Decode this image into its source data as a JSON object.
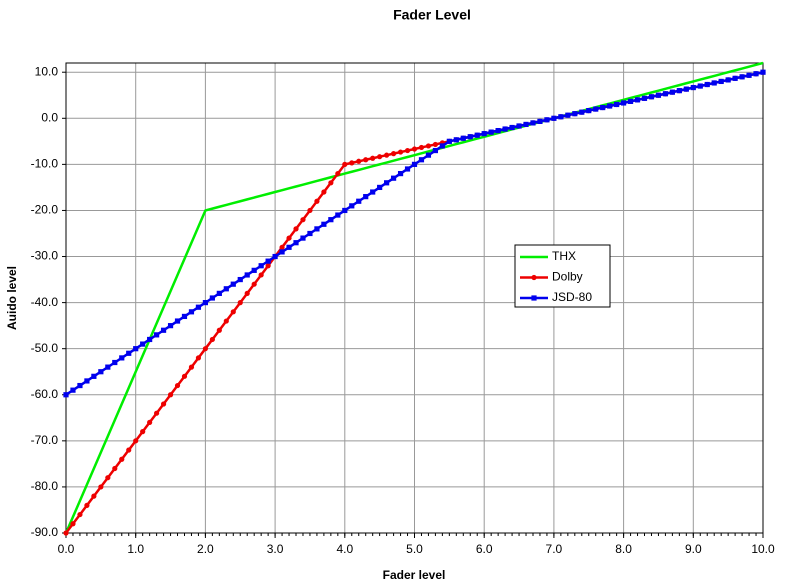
{
  "chart_data": {
    "type": "line",
    "title": "Fader Level",
    "x_label": "Fader level",
    "y_label": "Auido level",
    "x": [
      0,
      0.1,
      0.2,
      0.3,
      0.4,
      0.5,
      0.6,
      0.7,
      0.8,
      0.9,
      1,
      1.1,
      1.2,
      1.3,
      1.4,
      1.5,
      1.6,
      1.7,
      1.8,
      1.9,
      2,
      2.1,
      2.2,
      2.3,
      2.4,
      2.5,
      2.6,
      2.7,
      2.8,
      2.9,
      3,
      3.1,
      3.2,
      3.3,
      3.4,
      3.5,
      3.6,
      3.7,
      3.8,
      3.9,
      4,
      4.1,
      4.2,
      4.3,
      4.4,
      4.5,
      4.6,
      4.7,
      4.8,
      4.9,
      5,
      5.1,
      5.2,
      5.3,
      5.4,
      5.5,
      5.6,
      5.7,
      5.8,
      5.9,
      6,
      6.1,
      6.2,
      6.3,
      6.4,
      6.5,
      6.6,
      6.7,
      6.8,
      6.9,
      7,
      7.1,
      7.2,
      7.3,
      7.4,
      7.5,
      7.6,
      7.7,
      7.8,
      7.9,
      8,
      8.1,
      8.2,
      8.3,
      8.4,
      8.5,
      8.6,
      8.7,
      8.8,
      8.9,
      9,
      9.1,
      9.2,
      9.3,
      9.4,
      9.5,
      9.6,
      9.7,
      9.8,
      9.9,
      10
    ],
    "series": [
      {
        "name": "THX",
        "color": "#00ee00",
        "marker": "none",
        "values": [
          -90,
          -86.5,
          -83,
          -79.5,
          -76,
          -72.5,
          -69,
          -65.5,
          -62,
          -58.5,
          -55,
          -51.5,
          -48,
          -44.5,
          -41,
          -37.5,
          -34,
          -30.5,
          -27,
          -23.5,
          -20,
          -19.6,
          -19.2,
          -18.8,
          -18.4,
          -18,
          -17.6,
          -17.2,
          -16.8,
          -16.4,
          -16,
          -15.6,
          -15.2,
          -14.8,
          -14.4,
          -14,
          -13.6,
          -13.2,
          -12.8,
          -12.4,
          -12,
          -11.6,
          -11.2,
          -10.8,
          -10.4,
          -10,
          -9.6,
          -9.2,
          -8.8,
          -8.4,
          -8,
          -7.6,
          -7.2,
          -6.8,
          -6.4,
          -6,
          -5.6,
          -5.2,
          -4.8,
          -4.4,
          -4,
          -3.6,
          -3.2,
          -2.8,
          -2.4,
          -2,
          -1.6,
          -1.2,
          -0.8,
          -0.4,
          0,
          0.4,
          0.8,
          1.2,
          1.6,
          2,
          2.4,
          2.8,
          3.2,
          3.6,
          4,
          4.4,
          4.8,
          5.2,
          5.6,
          6,
          6.4,
          6.8,
          7.2,
          7.6,
          8,
          8.4,
          8.8,
          9.2,
          9.6,
          10,
          10.4,
          10.8,
          11.2,
          11.6,
          12
        ]
      },
      {
        "name": "Dolby",
        "color": "#ee0000",
        "marker": "circle",
        "values": [
          -90,
          -88,
          -86,
          -84,
          -82,
          -80,
          -78,
          -76,
          -74,
          -72,
          -70,
          -68,
          -66,
          -64,
          -62,
          -60,
          -58,
          -56,
          -54,
          -52,
          -50,
          -48,
          -46,
          -44,
          -42,
          -40,
          -38,
          -36,
          -34,
          -32,
          -30,
          -28,
          -26,
          -24,
          -22,
          -20,
          -18,
          -16,
          -14,
          -12,
          -10,
          -9.67,
          -9.33,
          -9,
          -8.67,
          -8.33,
          -8,
          -7.67,
          -7.33,
          -7,
          -6.67,
          -6.33,
          -6,
          -5.67,
          -5.33,
          -5,
          -4.67,
          -4.33,
          -4,
          -3.67,
          -3.33,
          -3,
          -2.67,
          -2.33,
          -2,
          -1.67,
          -1.33,
          -1,
          -0.67,
          -0.33,
          0,
          0.33,
          0.67,
          1,
          1.33,
          1.67,
          2,
          2.33,
          2.67,
          3,
          3.33,
          3.67,
          4,
          4.33,
          4.67,
          5,
          5.33,
          5.67,
          6,
          6.33,
          6.67,
          7,
          7.33,
          7.67,
          8,
          8.33,
          8.67,
          9,
          9.33,
          9.67,
          10
        ]
      },
      {
        "name": "JSD-80",
        "color": "#0000ee",
        "marker": "square",
        "values": [
          -60,
          -59,
          -58,
          -57,
          -56,
          -55,
          -54,
          -53,
          -52,
          -51,
          -50,
          -49,
          -48,
          -47,
          -46,
          -45,
          -44,
          -43,
          -42,
          -41,
          -40,
          -39,
          -38,
          -37,
          -36,
          -35,
          -34,
          -33,
          -32,
          -31,
          -30,
          -29,
          -28,
          -27,
          -26,
          -25,
          -24,
          -23,
          -22,
          -21,
          -20,
          -19,
          -18,
          -17,
          -16,
          -15,
          -14,
          -13,
          -12,
          -11,
          -10,
          -9,
          -8,
          -7,
          -6,
          -5,
          -4.67,
          -4.33,
          -4,
          -3.67,
          -3.33,
          -3,
          -2.67,
          -2.33,
          -2,
          -1.67,
          -1.33,
          -1,
          -0.67,
          -0.33,
          0,
          0.33,
          0.67,
          1,
          1.33,
          1.67,
          2,
          2.33,
          2.67,
          3,
          3.33,
          3.67,
          4,
          4.33,
          4.67,
          5,
          5.33,
          5.67,
          6,
          6.33,
          6.67,
          7,
          7.33,
          7.67,
          8,
          8.33,
          8.67,
          9,
          9.33,
          9.67,
          10
        ]
      }
    ],
    "xlim": [
      0,
      10
    ],
    "ylim": [
      -90,
      12
    ],
    "xticks": [
      {
        "value": 0,
        "label": "0.0"
      },
      {
        "value": 1,
        "label": "1.0"
      },
      {
        "value": 2,
        "label": "2.0"
      },
      {
        "value": 3,
        "label": "3.0"
      },
      {
        "value": 4,
        "label": "4.0"
      },
      {
        "value": 5,
        "label": "5.0"
      },
      {
        "value": 6,
        "label": "6.0"
      },
      {
        "value": 7,
        "label": "7.0"
      },
      {
        "value": 8,
        "label": "8.0"
      },
      {
        "value": 9,
        "label": "9.0"
      },
      {
        "value": 10,
        "label": "10.0"
      }
    ],
    "yticks": [
      {
        "value": -90,
        "label": "-90.0"
      },
      {
        "value": -80,
        "label": "-80.0"
      },
      {
        "value": -70,
        "label": "-70.0"
      },
      {
        "value": -60,
        "label": "-60.0"
      },
      {
        "value": -50,
        "label": "-50.0"
      },
      {
        "value": -40,
        "label": "-40.0"
      },
      {
        "value": -30,
        "label": "-30.0"
      },
      {
        "value": -20,
        "label": "-20.0"
      },
      {
        "value": -10,
        "label": "-10.0"
      },
      {
        "value": 0,
        "label": "0.0"
      },
      {
        "value": 10,
        "label": "10.0"
      }
    ],
    "grid": true
  }
}
